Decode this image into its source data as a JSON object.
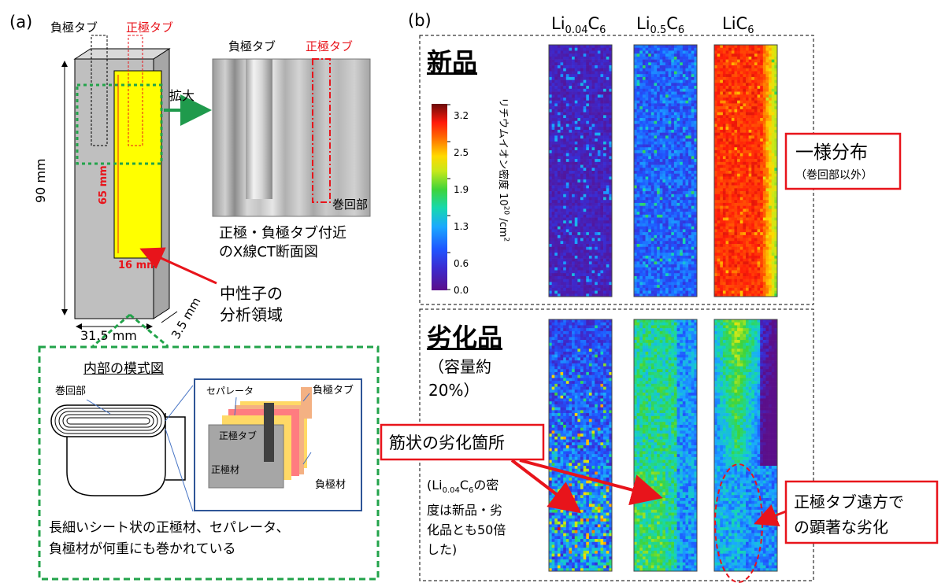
{
  "panel_a": {
    "label": "(a)",
    "neg_tab_label": "負極タブ",
    "pos_tab_label": "正極タブ",
    "dim_height": "90 mm",
    "dim_width": "31.5 mm",
    "dim_depth": "3.5 mm",
    "region_height": "65 mm",
    "region_width": "16 mm",
    "enlarge_label": "拡大",
    "ct_neg_tab": "負極タブ",
    "ct_pos_tab": "正極タブ",
    "ct_winding": "巻回部",
    "ct_caption_1": "正極・負極タブ付近",
    "ct_caption_2": "のX線CT断面図",
    "neutron_1": "中性子の",
    "neutron_2": "分析領域",
    "schematic_title": "内部の模式図",
    "schematic_winding": "巻回部",
    "schematic_separator": "セパレータ",
    "schematic_neg_tab": "負極タブ",
    "schematic_pos_tab": "正極タブ",
    "schematic_pos_mat": "正極材",
    "schematic_neg_mat": "負極材",
    "schematic_caption_1": "長細いシート状の正極材、セパレータ、",
    "schematic_caption_2": "負極材が何重にも巻かれている"
  },
  "panel_b": {
    "label": "(b)",
    "columns": [
      {
        "base": "Li",
        "sub": "0.04",
        "tail": "C",
        "sub2": "6"
      },
      {
        "base": "Li",
        "sub": "0.5",
        "tail": "C",
        "sub2": "6"
      },
      {
        "base": "LiC",
        "sub": "",
        "tail": "",
        "sub2": "6"
      }
    ],
    "new_label": "新品",
    "degraded_label": "劣化品",
    "degraded_sub_1": "（容量約",
    "degraded_sub_2": "20%）",
    "colorbar_ticks": [
      "3.2",
      "2.5",
      "1.9",
      "1.3",
      "0.6",
      "0.0"
    ],
    "colorbar_title": "リチウムイオン密度 10",
    "colorbar_exp": "20",
    "colorbar_unit": " /cm",
    "colorbar_unit_exp": "2",
    "uniform_label": "一様分布",
    "uniform_sub": "（巻回部以外）",
    "streak_label": "筋状の劣化箇所",
    "note_1": "(Li",
    "note_sub1": "0.04",
    "note_c": "C",
    "note_sub2": "6",
    "note_end": "の密",
    "note_2": "度は新品・劣",
    "note_3": "化品とも50倍",
    "note_4": "した)",
    "far_label_1": "正極タブ遠方で",
    "far_label_2": "の顕著な劣化"
  },
  "colors": {
    "red_frame": "#e8141b",
    "green_dash": "#22a34a",
    "arrow_green": "#1f9a4c",
    "yellow": "#ffff00",
    "gray_cell": "#bfbfbf"
  }
}
